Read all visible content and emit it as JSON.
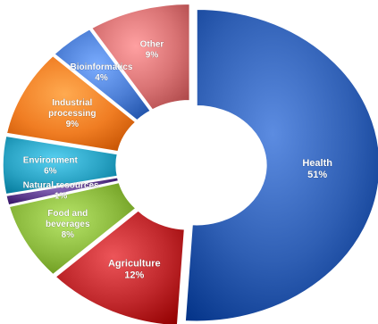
{
  "chart_data": {
    "type": "pie",
    "title": "",
    "categories": [
      "Health",
      "Agriculture",
      "Food and beverages",
      "Natural resources",
      "Environment",
      "Industrial processing",
      "Bioinformatics",
      "Other"
    ],
    "values": [
      51,
      12,
      8,
      1,
      6,
      9,
      4,
      9
    ],
    "value_labels": [
      "51%",
      "12%",
      "8%",
      "1%",
      "6%",
      "9%",
      "4%",
      "9%"
    ],
    "label_lines": [
      [
        "Health",
        "51%"
      ],
      [
        "Agriculture",
        "12%"
      ],
      [
        "Food and",
        "beverages",
        "8%"
      ],
      [
        "Natural resources",
        "1%"
      ],
      [
        "Environment",
        "6%"
      ],
      [
        "Industrial",
        "processing",
        "9%"
      ],
      [
        "Bioinformatics",
        "4%"
      ],
      [
        "Other",
        "9%"
      ]
    ],
    "colors": [
      "#2f5fb4",
      "#c0282c",
      "#8ab83c",
      "#5b3a8c",
      "#2aa3c4",
      "#f07d23",
      "#4d7fd6",
      "#d97374"
    ],
    "style": "doughnut, 3D shaded, exploded slices",
    "legend": "none"
  }
}
